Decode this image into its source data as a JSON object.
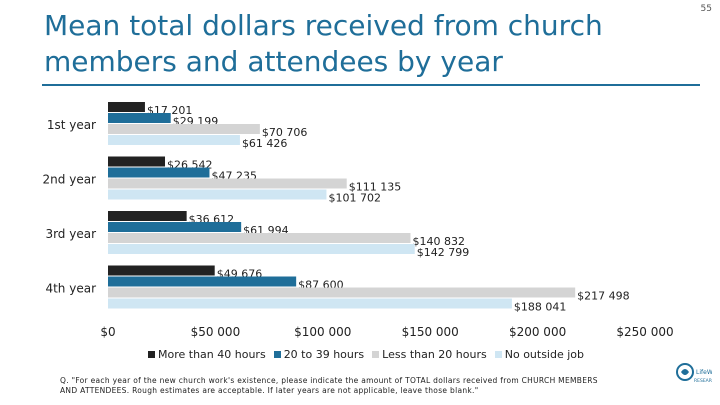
{
  "header": {
    "title": "Mean total dollars received from church members and attendees by year",
    "page_number": "55"
  },
  "footnote": "Q. \"For each year of the new church work's existence, please indicate the amount of TOTAL dollars received from CHURCH MEMBERS AND ATTENDEES. Rough estimates are acceptable. If later years are not applicable, leave those blank.\"",
  "logo": {
    "text": "LifeWay RESEARCH"
  },
  "colors": {
    "title": "#1f6e99",
    "s1": "#222222",
    "s2": "#1f6e99",
    "s3": "#d4d4d4",
    "s4": "#cfe6f3"
  },
  "chart_data": {
    "type": "bar",
    "orientation": "horizontal",
    "title": "Mean total dollars received from church members and attendees by year",
    "categories": [
      "1st year",
      "2nd year",
      "3rd year",
      "4th year"
    ],
    "series": [
      {
        "name": "More than 40 hours",
        "color": "#222222",
        "values": [
          17201,
          26542,
          36612,
          49676
        ],
        "labels": [
          "$17 201",
          "$26 542",
          "$36 612",
          "$49 676"
        ]
      },
      {
        "name": "20 to 39 hours",
        "color": "#1f6e99",
        "values": [
          29199,
          47235,
          61994,
          87600
        ],
        "labels": [
          "$29 199",
          "$47 235",
          "$61 994",
          "$87 600"
        ]
      },
      {
        "name": "Less than 20 hours",
        "color": "#d4d4d4",
        "values": [
          70706,
          111135,
          140832,
          217498
        ],
        "labels": [
          "$70 706",
          "$111 135",
          "$140 832",
          "$217 498"
        ]
      },
      {
        "name": "No outside job",
        "color": "#cfe6f3",
        "values": [
          61426,
          101702,
          142799,
          188041
        ],
        "labels": [
          "$61 426",
          "$101 702",
          "$142 799",
          "$188 041"
        ]
      }
    ],
    "xlim": [
      0,
      250000
    ],
    "xticks": [
      0,
      50000,
      100000,
      150000,
      200000,
      250000
    ],
    "xtick_labels": [
      "$0",
      "$50 000",
      "$100 000",
      "$150 000",
      "$200 000",
      "$250 000"
    ],
    "xlabel": "",
    "ylabel": "",
    "legend": "bottom"
  }
}
